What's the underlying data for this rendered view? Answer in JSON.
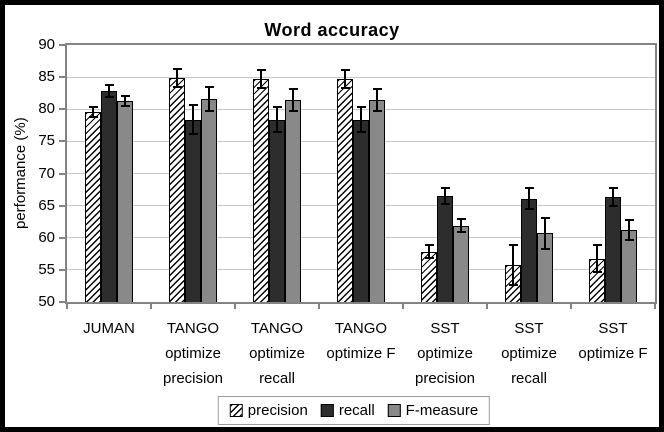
{
  "figure": {
    "background": "#ffffff",
    "outer_border_color": "#000000"
  },
  "chart_data": {
    "type": "bar",
    "title": "Word accuracy",
    "xlabel": "",
    "ylabel": "performance (%)",
    "ylim": [
      50,
      90
    ],
    "ytick_interval": 5,
    "ytick_labels": [
      "50",
      "55",
      "60",
      "65",
      "70",
      "75",
      "80",
      "85",
      "90"
    ],
    "grid": true,
    "error_bars": true,
    "legend_position": "bottom-center",
    "categories": [
      "JUMAN",
      "TANGO optimize precision",
      "TANGO optimize recall",
      "TANGO optimize F",
      "SST optimize precision",
      "SST optimize recall",
      "SST optimize F"
    ],
    "category_label_lines": [
      [
        "JUMAN"
      ],
      [
        "TANGO",
        "optimize",
        "precision"
      ],
      [
        "TANGO",
        "optimize",
        "recall"
      ],
      [
        "TANGO",
        "optimize F"
      ],
      [
        "SST",
        "optimize",
        "precision"
      ],
      [
        "SST",
        "optimize",
        "recall"
      ],
      [
        "SST",
        "optimize F"
      ]
    ],
    "series": [
      {
        "name": "precision",
        "style": "hatched",
        "fill": "#ffffff",
        "hatch_color": "#000000",
        "values": [
          79.6,
          84.9,
          84.7,
          84.7,
          57.8,
          55.7,
          56.7
        ],
        "errors": [
          0.8,
          1.4,
          1.4,
          1.4,
          1.0,
          3.1,
          2.1
        ]
      },
      {
        "name": "recall",
        "style": "solid",
        "fill": "#2d2d2d",
        "values": [
          82.8,
          78.4,
          78.4,
          78.4,
          66.5,
          66.1,
          66.4
        ],
        "errors": [
          0.9,
          2.2,
          2.0,
          2.0,
          1.2,
          1.6,
          1.4
        ]
      },
      {
        "name": "F-measure",
        "style": "solid",
        "fill": "#898989",
        "values": [
          81.3,
          81.6,
          81.4,
          81.4,
          61.9,
          60.7,
          61.2
        ],
        "errors": [
          0.8,
          1.9,
          1.7,
          1.7,
          1.0,
          2.4,
          1.5
        ]
      }
    ],
    "colors": {
      "grid": "#c8c8c8",
      "axis": "#848484",
      "error_bar": "#000000",
      "bar_border": "#000000",
      "legend_border": "#9c9c9c",
      "text": "#000000"
    }
  }
}
